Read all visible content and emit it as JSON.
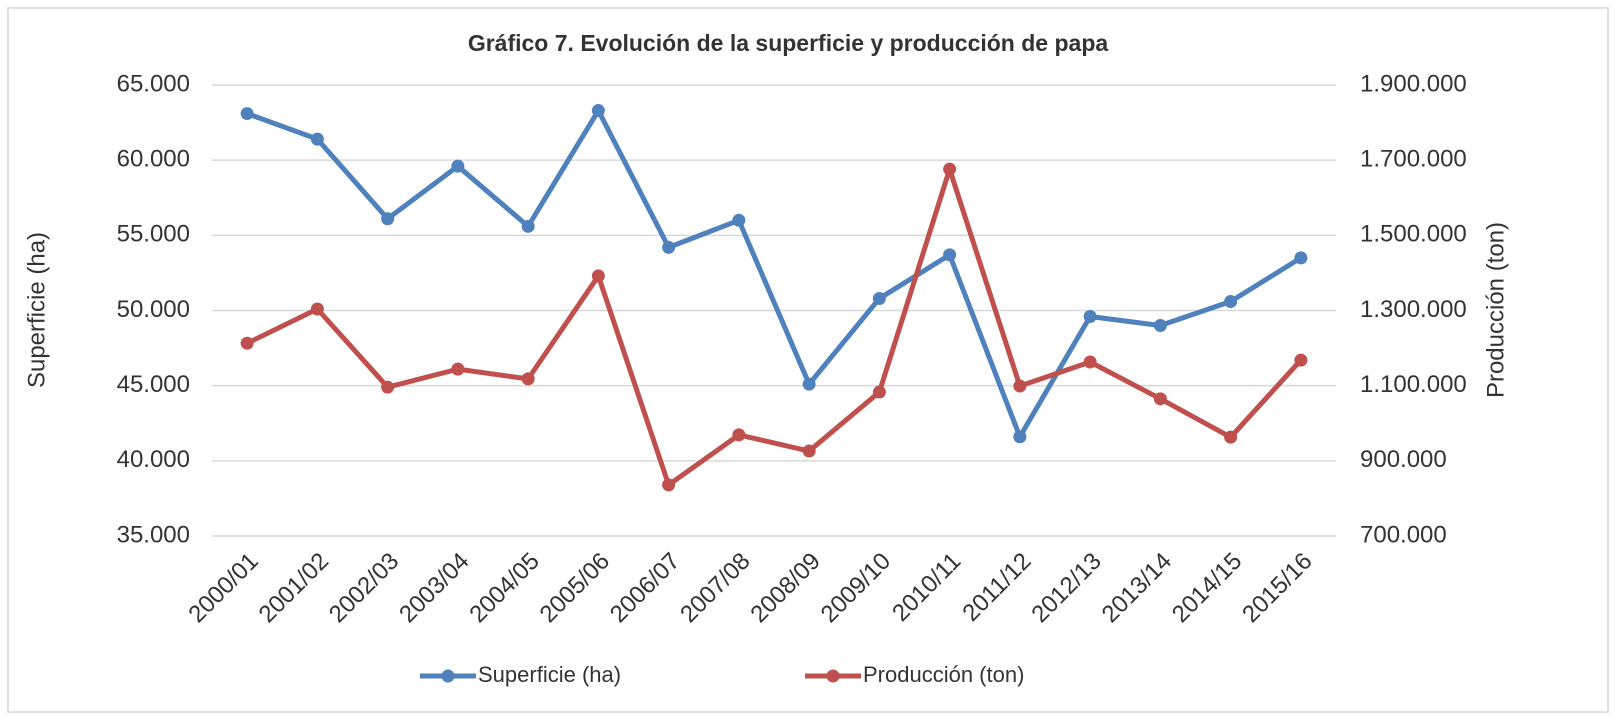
{
  "chart_data": {
    "type": "line",
    "title": "Gráfico 7. Evolución de la superficie y producción de papa",
    "y_label": "Superficie (ha)",
    "y2_label": "Producción (ton)",
    "categories": [
      "2000/01",
      "2001/02",
      "2002/03",
      "2003/04",
      "2004/05",
      "2005/06",
      "2006/07",
      "2007/08",
      "2008/09",
      "2009/10",
      "2010/11",
      "2011/12",
      "2012/13",
      "2013/14",
      "2014/15",
      "2015/16"
    ],
    "series": [
      {
        "name": "Superficie (ha)",
        "color": "#4f81bd",
        "axis": "y",
        "values": [
          63100,
          61400,
          56100,
          59600,
          55600,
          63300,
          54200,
          56000,
          45100,
          50800,
          53700,
          41600,
          49600,
          49000,
          50600,
          53500
        ]
      },
      {
        "name": "Producción (ton)",
        "color": "#c0504d",
        "axis": "y2",
        "values": [
          1213000,
          1304000,
          1096000,
          1144000,
          1118000,
          1392000,
          836000,
          969000,
          926000,
          1083000,
          1676000,
          1099000,
          1163000,
          1065000,
          963000,
          1168000
        ]
      }
    ],
    "ylim": [
      35000,
      65000
    ],
    "yticks": [
      {
        "value": 35000,
        "label": "35.000"
      },
      {
        "value": 40000,
        "label": "40.000"
      },
      {
        "value": 45000,
        "label": "45.000"
      },
      {
        "value": 50000,
        "label": "50.000"
      },
      {
        "value": 55000,
        "label": "55.000"
      },
      {
        "value": 60000,
        "label": "60.000"
      },
      {
        "value": 65000,
        "label": "65.000"
      }
    ],
    "y2lim": [
      700000,
      1900000
    ],
    "y2ticks": [
      {
        "value": 700000,
        "label": "700.000"
      },
      {
        "value": 900000,
        "label": "900.000"
      },
      {
        "value": 1100000,
        "label": "1.100.000"
      },
      {
        "value": 1300000,
        "label": "1.300.000"
      },
      {
        "value": 1500000,
        "label": "1.500.000"
      },
      {
        "value": 1700000,
        "label": "1.700.000"
      },
      {
        "value": 1900000,
        "label": "1.900.000"
      }
    ],
    "y_color": "#333399",
    "y2_color": "#c0504d",
    "grid": true,
    "legend": "bottom"
  }
}
